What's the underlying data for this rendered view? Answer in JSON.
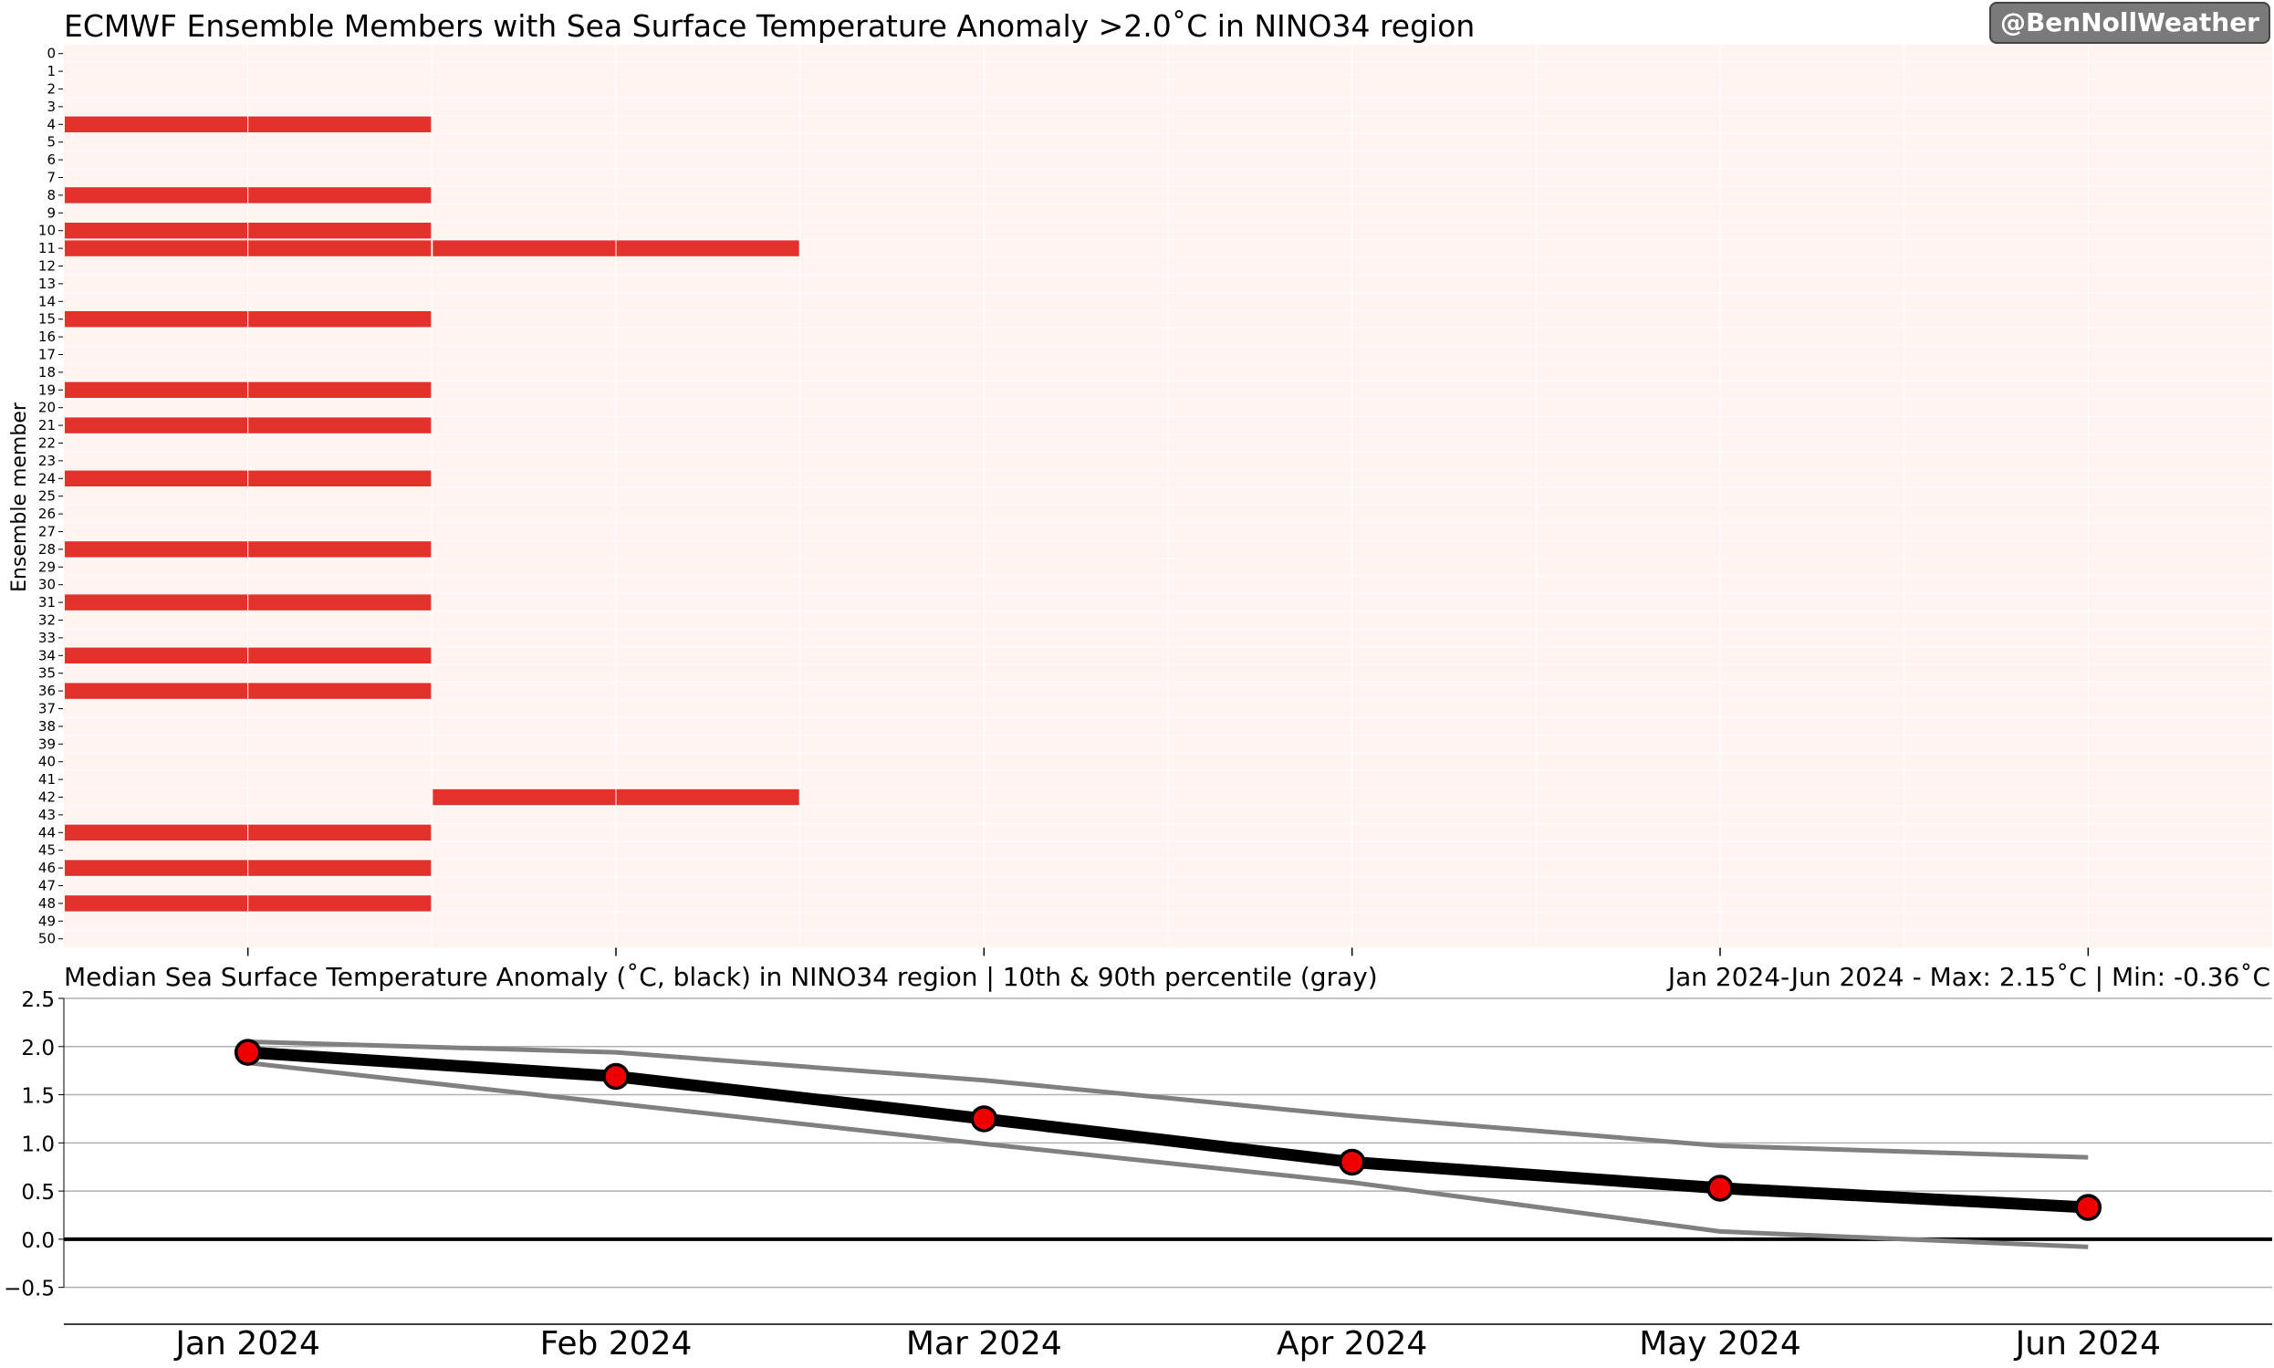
{
  "watermark": "@BenNollWeather",
  "chart_data": [
    {
      "type": "heatmap",
      "title": "ECMWF Ensemble Members with Sea Surface Temperature Anomaly >2.0˚C in NINO34 region",
      "ylabel": "Ensemble member",
      "members": [
        0,
        1,
        2,
        3,
        4,
        5,
        6,
        7,
        8,
        9,
        10,
        11,
        12,
        13,
        14,
        15,
        16,
        17,
        18,
        19,
        20,
        21,
        22,
        23,
        24,
        25,
        26,
        27,
        28,
        29,
        30,
        31,
        32,
        33,
        34,
        35,
        36,
        37,
        38,
        39,
        40,
        41,
        42,
        43,
        44,
        45,
        46,
        47,
        48,
        49,
        50
      ],
      "months": [
        "Jan 2024",
        "Feb 2024",
        "Mar 2024",
        "Apr 2024",
        "May 2024",
        "Jun 2024"
      ],
      "exceed": {
        "Jan 2024": [
          4,
          8,
          10,
          11,
          15,
          19,
          21,
          24,
          28,
          31,
          34,
          36,
          44,
          46,
          48
        ],
        "Feb 2024": [
          11,
          42
        ],
        "Mar 2024": [],
        "Apr 2024": [],
        "May 2024": [],
        "Jun 2024": []
      },
      "colors": {
        "exceed": "#e3312b",
        "background": "#fff4f0"
      }
    },
    {
      "type": "line",
      "title": "Median Sea Surface Temperature Anomaly (˚C, black) in NINO34 region | 10th & 90th percentile (gray)",
      "subtitle": "Jan 2024-Jun 2024 - Max: 2.15˚C | Min: -0.36˚C",
      "categories": [
        "Jan 2024",
        "Feb 2024",
        "Mar 2024",
        "Apr 2024",
        "May 2024",
        "Jun 2024"
      ],
      "series": [
        {
          "name": "Median",
          "values": [
            1.94,
            1.69,
            1.25,
            0.8,
            0.53,
            0.33
          ],
          "color": "#000000"
        },
        {
          "name": "90th percentile",
          "values": [
            2.05,
            1.94,
            1.65,
            1.28,
            0.97,
            0.85
          ],
          "color": "#808080"
        },
        {
          "name": "10th percentile",
          "values": [
            1.83,
            1.41,
            0.99,
            0.59,
            0.08,
            -0.08
          ],
          "color": "#808080"
        }
      ],
      "yticks": [
        "2.5",
        "2.0",
        "1.5",
        "1.0",
        "0.5",
        "0.0",
        "−0.5"
      ],
      "ylim": [
        -0.56,
        2.5
      ],
      "grid": true,
      "marker_color": "#ee0000"
    }
  ]
}
